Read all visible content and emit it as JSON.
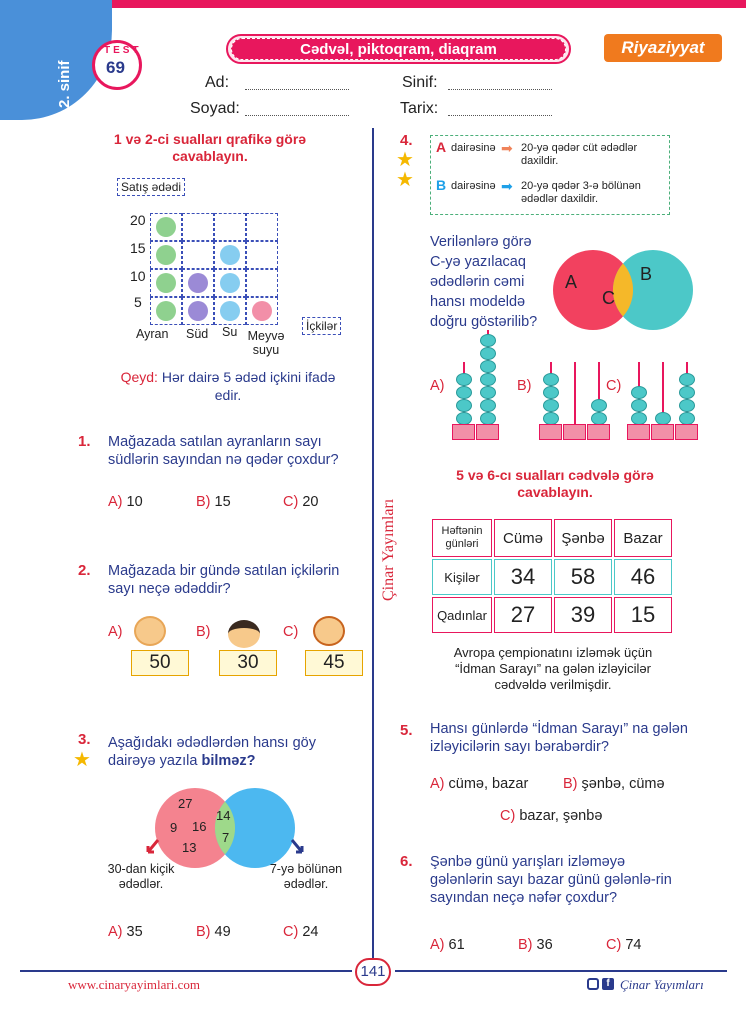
{
  "header": {
    "grade": "2. sinif",
    "test_label": "TEST",
    "test_number": "69",
    "title": "Cədvəl, piktoqram, diaqram",
    "subject": "Riyaziyyat"
  },
  "form": {
    "ad": "Ad:",
    "soyad": "Soyad:",
    "sinif": "Sinif:",
    "tarix": "Tarix:"
  },
  "section1": {
    "instruction": "1 və 2-ci sualları qrafikə görə cavablayın.",
    "y_label": "Satış ədədi",
    "x_label": "İçkilər",
    "y_ticks": [
      "20",
      "15",
      "10",
      "5"
    ],
    "categories": [
      "Ayran",
      "Süd",
      "Su",
      "Meyvə suyu"
    ],
    "note_label": "Qeyd:",
    "note_text": "Hər dairə 5 ədəd içkini ifadə edir."
  },
  "chart_data": {
    "type": "pictogram",
    "categories": [
      "Ayran",
      "Süd",
      "Su",
      "Meyvə suyu"
    ],
    "values": [
      20,
      10,
      15,
      5
    ],
    "xlabel": "İçkilər",
    "ylabel": "Satış ədədi",
    "ylim": [
      0,
      20
    ],
    "colors": [
      "#8fd18f",
      "#9b8ad6",
      "#86cdf0",
      "#f28fa8"
    ]
  },
  "q1": {
    "num": "1.",
    "text": "Mağazada satılan ayranların sayı südlərin sayından nə qədər çoxdur?",
    "options": [
      {
        "l": "A)",
        "v": "10"
      },
      {
        "l": "B)",
        "v": "15"
      },
      {
        "l": "C)",
        "v": "20"
      }
    ]
  },
  "q2": {
    "num": "2.",
    "text": "Mağazada bir gündə satılan içkilərin sayı neçə ədəddir?",
    "options": [
      {
        "l": "A)",
        "v": "50"
      },
      {
        "l": "B)",
        "v": "30"
      },
      {
        "l": "C)",
        "v": "45"
      }
    ]
  },
  "q3": {
    "num": "3.",
    "text_pre": "Aşağıdakı ədədlərdən hansı göy dairəyə yazıla ",
    "text_bold": "bilməz?",
    "left_numbers": [
      "27",
      "9",
      "16",
      "13"
    ],
    "middle_numbers": [
      "14",
      "7"
    ],
    "left_label": "30-dan kiçik ədədlər.",
    "right_label": "7-yə bölünən ədədlər.",
    "options": [
      {
        "l": "A)",
        "v": "35"
      },
      {
        "l": "B)",
        "v": "49"
      },
      {
        "l": "C)",
        "v": "24"
      }
    ]
  },
  "q4": {
    "num": "4.",
    "a_letter": "A",
    "a_text": "dairəsinə",
    "a_desc": "20-yə qədər cüt ədədlər daxildir.",
    "b_letter": "B",
    "b_text": "dairəsinə",
    "b_desc": "20-yə qədər 3-ə bölünən ədədlər daxildir.",
    "question": "Verilənlərə görə C-yə yazılacaq ədədlərin cəmi hansı modeldə doğru göstərilib?",
    "venn": [
      "A",
      "B",
      "C"
    ],
    "options": [
      "A)",
      "B)",
      "C)"
    ]
  },
  "section2": {
    "instruction": "5 və 6-cı sualları cədvələ görə cavablayın.",
    "table_head": [
      "Həftənin günləri",
      "Cümə",
      "Şənbə",
      "Bazar"
    ],
    "rows": [
      {
        "label": "Kişilər",
        "values": [
          "34",
          "58",
          "46"
        ]
      },
      {
        "label": "Qadınlar",
        "values": [
          "27",
          "39",
          "15"
        ]
      }
    ],
    "caption": "Avropa çempionatını izləmək üçün “İdman Sarayı” na gələn izləyicilər cədvəldə verilmişdir."
  },
  "q5": {
    "num": "5.",
    "text": "Hansı günlərdə “İdman Sarayı” na gələn izləyicilərin sayı bərabərdir?",
    "options": [
      {
        "l": "A)",
        "v": "cümə, bazar"
      },
      {
        "l": "B)",
        "v": "şənbə, cümə"
      },
      {
        "l": "C)",
        "v": "bazar, şənbə"
      }
    ]
  },
  "q6": {
    "num": "6.",
    "text": "Şənbə günü yarışları izləməyə gələnlərin sayı bazar günü gələnlə-rin sayından neçə nəfər çoxdur?",
    "options": [
      {
        "l": "A)",
        "v": "61"
      },
      {
        "l": "B)",
        "v": "36"
      },
      {
        "l": "C)",
        "v": "74"
      }
    ]
  },
  "footer": {
    "website": "www.cinaryayimlari.com",
    "page": "141",
    "brand": "Çinar Yayımları",
    "vertical_brand": "Çinar Yayımları"
  }
}
